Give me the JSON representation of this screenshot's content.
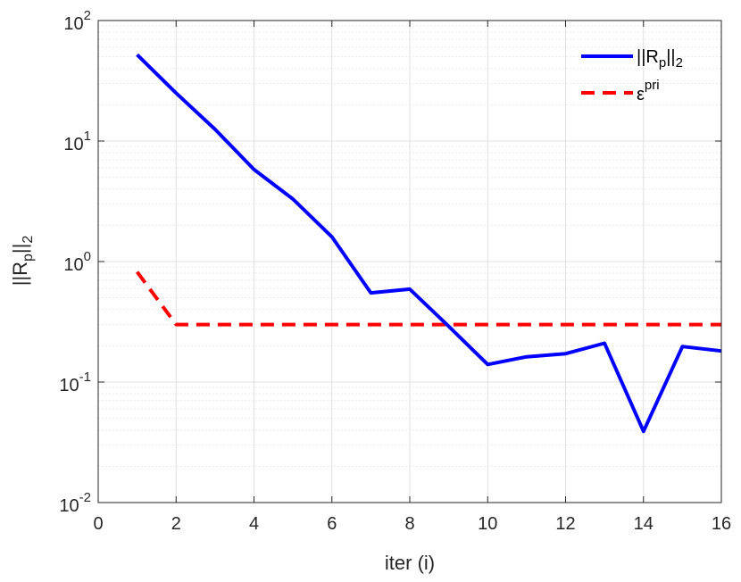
{
  "chart_data": {
    "type": "line",
    "title": "",
    "xlabel": "iter (i)",
    "ylabel": {
      "base": "||R",
      "sub1": "p",
      "mid": "||",
      "sub2": "2"
    },
    "xlim": [
      0,
      16
    ],
    "ylim": [
      0.01,
      100
    ],
    "yscale": "log",
    "grid": true,
    "minor_grid": true,
    "x_ticks": [
      0,
      2,
      4,
      6,
      8,
      10,
      12,
      14,
      16
    ],
    "y_ticks": [
      {
        "value": 0.01,
        "base": "10",
        "exp": "-2"
      },
      {
        "value": 0.1,
        "base": "10",
        "exp": "-1"
      },
      {
        "value": 1,
        "base": "10",
        "exp": "0"
      },
      {
        "value": 10,
        "base": "10",
        "exp": "1"
      },
      {
        "value": 100,
        "base": "10",
        "exp": "2"
      }
    ],
    "legend_position": "top-right",
    "series": [
      {
        "id": "rp",
        "legend": {
          "base": "||R",
          "sub1": "p",
          "mid": "||",
          "sub2": "2"
        },
        "color": "#0000ff",
        "style": "solid",
        "x": [
          1,
          2,
          3,
          4,
          5,
          6,
          7,
          8,
          9,
          10,
          11,
          12,
          13,
          14,
          15,
          16
        ],
        "y": [
          52,
          25,
          12.5,
          5.8,
          3.3,
          1.6,
          0.55,
          0.59,
          0.29,
          0.14,
          0.162,
          0.172,
          0.21,
          0.039,
          0.197,
          0.181
        ]
      },
      {
        "id": "eps",
        "legend": {
          "base": "ε",
          "sup": "pri"
        },
        "color": "#ff0000",
        "style": "dashed",
        "x": [
          1,
          2,
          3,
          4,
          5,
          6,
          7,
          8,
          9,
          10,
          11,
          12,
          13,
          14,
          15,
          16
        ],
        "y": [
          0.82,
          0.3,
          0.3,
          0.3,
          0.3,
          0.3,
          0.3,
          0.3,
          0.3,
          0.3,
          0.3,
          0.3,
          0.3,
          0.3,
          0.3,
          0.3
        ]
      }
    ]
  }
}
